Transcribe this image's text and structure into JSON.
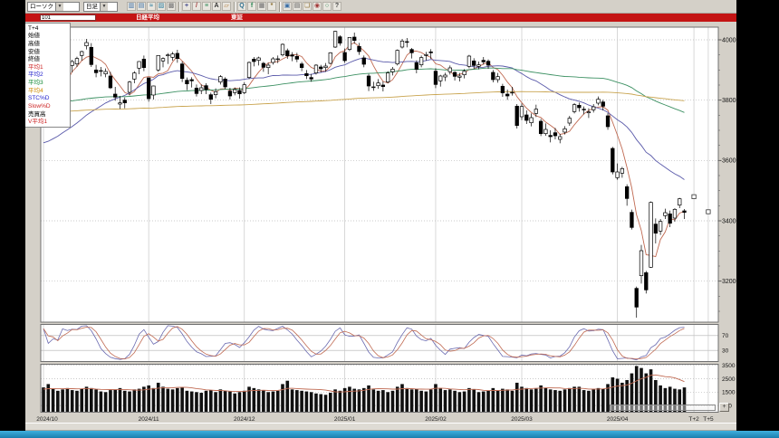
{
  "toolbar": {
    "chart_type_value": "ローソク",
    "period_value": "日足",
    "icons": [
      {
        "name": "candle-chart-icon",
        "glyph": "▥",
        "color": "#3a6ea5"
      },
      {
        "name": "bar-chart-icon",
        "glyph": "▤",
        "color": "#3a6ea5"
      },
      {
        "name": "line-chart-icon",
        "glyph": "≈",
        "color": "#2e7d9e"
      },
      {
        "name": "area-chart-icon",
        "glyph": "▨",
        "color": "#2e7d9e"
      },
      {
        "name": "compare-chart-icon",
        "glyph": "▩",
        "color": "#6f6f6f"
      },
      {
        "name": "separator",
        "sep": true
      },
      {
        "name": "crosshair-icon",
        "glyph": "+",
        "color": "#444a8c"
      },
      {
        "name": "trendline-icon",
        "glyph": "/",
        "color": "#a03535"
      },
      {
        "name": "fibonacci-icon",
        "glyph": "≡",
        "color": "#2f8a57"
      },
      {
        "name": "text-annotation-icon",
        "glyph": "A",
        "color": "#333333"
      },
      {
        "name": "eraser-icon",
        "glyph": "▱",
        "color": "#b07a3c"
      },
      {
        "name": "separator",
        "sep": true
      },
      {
        "name": "zoom-in-icon",
        "glyph": "Q",
        "color": "#2e6e8e"
      },
      {
        "name": "indicator-icon",
        "glyph": "f",
        "color": "#2f8a57"
      },
      {
        "name": "grid-toggle-icon",
        "glyph": "▦",
        "color": "#666666"
      },
      {
        "name": "settings-icon",
        "glyph": "*",
        "color": "#8a6d2f"
      },
      {
        "name": "separator",
        "sep": true
      },
      {
        "name": "save-icon",
        "glyph": "▣",
        "color": "#3a6ea5"
      },
      {
        "name": "print-icon",
        "glyph": "▤",
        "color": "#555555"
      },
      {
        "name": "copy-icon",
        "glyph": "❏",
        "color": "#8a6d2f"
      },
      {
        "name": "camera-icon",
        "glyph": "◉",
        "color": "#a03535"
      },
      {
        "name": "refresh-icon",
        "glyph": "○",
        "color": "#2f8a57"
      },
      {
        "name": "help-icon",
        "glyph": "?",
        "color": "#444444"
      }
    ]
  },
  "banner": {
    "code": "101",
    "name": "日経平均",
    "market": "東証",
    "color": "#c41414"
  },
  "legend": {
    "items": [
      {
        "label": "T+4",
        "color": "#000000"
      },
      {
        "label": "始値",
        "color": "#000000"
      },
      {
        "label": "高値",
        "color": "#000000"
      },
      {
        "label": "安値",
        "color": "#000000"
      },
      {
        "label": "終値",
        "color": "#000000"
      },
      {
        "label": "平均1",
        "color": "#cc2222"
      },
      {
        "label": "平均2",
        "color": "#2222cc"
      },
      {
        "label": "平均3",
        "color": "#118833"
      },
      {
        "label": "平均4",
        "color": "#cc8800"
      },
      {
        "label": "STC%D",
        "color": "#2222cc"
      },
      {
        "label": "Slow%D",
        "color": "#cc2222"
      },
      {
        "label": "売買高",
        "color": "#000000"
      },
      {
        "label": "V平均1",
        "color": "#cc2222"
      }
    ]
  },
  "footer": {
    "expand_glyph": "+"
  },
  "chart_data": {
    "type": "candlestick",
    "title": "日経平均 日足",
    "x_labels": [
      {
        "label": "2024/10",
        "index": 0
      },
      {
        "label": "2024/11",
        "index": 22
      },
      {
        "label": "2024/12",
        "index": 42
      },
      {
        "label": "2025/01",
        "index": 63
      },
      {
        "label": "2025/02",
        "index": 82
      },
      {
        "label": "2025/03",
        "index": 100
      },
      {
        "label": "2025/04",
        "index": 120
      },
      {
        "label": "T+2",
        "offset": 2
      },
      {
        "label": "T+5",
        "offset": 5
      }
    ],
    "y_axis_main": {
      "ticks": [
        40000,
        38000,
        36000,
        34000,
        32000
      ],
      "minor_step": 500,
      "range": [
        30640,
        40420
      ]
    },
    "y_axis_stoch": {
      "ticks": [
        70,
        30
      ],
      "range": [
        0,
        100
      ]
    },
    "y_axis_volume": {
      "ticks": [
        3500,
        2500,
        1500,
        500
      ],
      "range": [
        0,
        3580
      ]
    },
    "candles": [
      [
        38300,
        38700,
        38250,
        38650
      ],
      [
        38400,
        38650,
        37720,
        37810
      ],
      [
        38140,
        38620,
        38090,
        38550
      ],
      [
        38560,
        38860,
        38380,
        38640
      ],
      [
        39100,
        39350,
        38900,
        39330
      ],
      [
        39380,
        39430,
        38820,
        38940
      ],
      [
        39150,
        39340,
        38920,
        39280
      ],
      [
        39200,
        39440,
        39100,
        39380
      ],
      [
        39480,
        39640,
        39310,
        39610
      ],
      [
        39800,
        40030,
        39680,
        39910
      ],
      [
        39750,
        39890,
        39100,
        39180
      ],
      [
        39000,
        39170,
        38760,
        38910
      ],
      [
        38970,
        39100,
        38790,
        38980
      ],
      [
        38870,
        39050,
        38760,
        38950
      ],
      [
        38800,
        38940,
        38370,
        38410
      ],
      [
        38200,
        38440,
        37980,
        38100
      ],
      [
        37870,
        38140,
        37710,
        37910
      ],
      [
        38000,
        38090,
        37730,
        37910
      ],
      [
        38260,
        38640,
        38160,
        38600
      ],
      [
        38700,
        38960,
        38560,
        38900
      ],
      [
        39060,
        39290,
        38860,
        39280
      ],
      [
        39360,
        39480,
        38960,
        39080
      ],
      [
        38740,
        38750,
        37950,
        38050
      ],
      [
        38170,
        38480,
        38020,
        38470
      ],
      [
        39000,
        39490,
        38940,
        39480
      ],
      [
        39300,
        39420,
        39090,
        39380
      ],
      [
        39470,
        39560,
        39200,
        39500
      ],
      [
        39420,
        39600,
        39310,
        39530
      ],
      [
        39550,
        39670,
        39240,
        39380
      ],
      [
        39200,
        39280,
        38600,
        38720
      ],
      [
        38660,
        38750,
        38330,
        38540
      ],
      [
        38680,
        38760,
        38420,
        38640
      ],
      [
        38400,
        38520,
        38120,
        38220
      ],
      [
        38320,
        38520,
        38200,
        38410
      ],
      [
        38480,
        38560,
        38200,
        38350
      ],
      [
        38180,
        38250,
        37870,
        38030
      ],
      [
        38180,
        38390,
        38060,
        38280
      ],
      [
        38600,
        38830,
        38520,
        38780
      ],
      [
        38700,
        38760,
        38370,
        38440
      ],
      [
        38300,
        38410,
        38020,
        38140
      ],
      [
        38250,
        38420,
        38160,
        38350
      ],
      [
        38320,
        38420,
        38050,
        38210
      ],
      [
        38250,
        38590,
        38200,
        38510
      ],
      [
        38750,
        39280,
        38700,
        39250
      ],
      [
        39360,
        39430,
        39120,
        39280
      ],
      [
        39320,
        39440,
        39150,
        39400
      ],
      [
        39220,
        39270,
        38940,
        39090
      ],
      [
        39080,
        39240,
        38860,
        39160
      ],
      [
        39250,
        39430,
        39180,
        39370
      ],
      [
        39350,
        39480,
        39230,
        39370
      ],
      [
        39500,
        39880,
        39450,
        39850
      ],
      [
        39640,
        39710,
        39370,
        39470
      ],
      [
        39500,
        39590,
        39290,
        39460
      ],
      [
        39450,
        39570,
        39260,
        39360
      ],
      [
        39200,
        39270,
        38960,
        39080
      ],
      [
        38880,
        39000,
        38700,
        38810
      ],
      [
        38750,
        38870,
        38610,
        38700
      ],
      [
        38900,
        39190,
        38850,
        39160
      ],
      [
        39100,
        39170,
        38920,
        39040
      ],
      [
        39080,
        39230,
        38940,
        39130
      ],
      [
        39220,
        39590,
        39190,
        39570
      ],
      [
        39760,
        40300,
        39730,
        40280
      ],
      [
        40100,
        40150,
        39810,
        39890
      ],
      [
        39580,
        39710,
        39240,
        39310
      ],
      [
        39680,
        40090,
        39630,
        40080
      ],
      [
        40090,
        40240,
        39870,
        39980
      ],
      [
        39780,
        39900,
        39500,
        39610
      ],
      [
        39400,
        39480,
        39090,
        39190
      ],
      [
        38800,
        38870,
        38300,
        38470
      ],
      [
        38420,
        38610,
        38310,
        38440
      ],
      [
        38480,
        38700,
        38380,
        38570
      ],
      [
        38500,
        38620,
        38290,
        38450
      ],
      [
        38600,
        38960,
        38560,
        38900
      ],
      [
        38940,
        39100,
        38820,
        39030
      ],
      [
        39200,
        39680,
        39150,
        39650
      ],
      [
        39760,
        40030,
        39710,
        39960
      ],
      [
        39940,
        40060,
        39750,
        39930
      ],
      [
        39680,
        39730,
        39380,
        39570
      ],
      [
        39240,
        39320,
        38890,
        39020
      ],
      [
        39170,
        39480,
        39090,
        39410
      ],
      [
        39480,
        39600,
        39310,
        39510
      ],
      [
        39600,
        39690,
        39370,
        39570
      ],
      [
        38960,
        39060,
        38400,
        38520
      ],
      [
        38640,
        38840,
        38450,
        38800
      ],
      [
        38770,
        38910,
        38630,
        38830
      ],
      [
        38940,
        39150,
        38850,
        39070
      ],
      [
        38920,
        38960,
        38650,
        38790
      ],
      [
        38760,
        38900,
        38620,
        38800
      ],
      [
        38840,
        39030,
        38720,
        38960
      ],
      [
        39120,
        39500,
        39060,
        39460
      ],
      [
        39300,
        39390,
        39030,
        39150
      ],
      [
        39120,
        39280,
        39020,
        39170
      ],
      [
        39320,
        39430,
        39180,
        39270
      ],
      [
        39290,
        39350,
        39040,
        39160
      ],
      [
        38920,
        39000,
        38590,
        38680
      ],
      [
        38680,
        38900,
        38580,
        38780
      ],
      [
        38460,
        38540,
        38110,
        38240
      ],
      [
        38200,
        38350,
        38010,
        38140
      ],
      [
        38250,
        38440,
        38150,
        38260
      ],
      [
        37800,
        37870,
        37060,
        37160
      ],
      [
        37450,
        37890,
        37340,
        37790
      ],
      [
        37510,
        37660,
        37210,
        37330
      ],
      [
        37250,
        37560,
        37130,
        37420
      ],
      [
        37560,
        37850,
        37440,
        37700
      ],
      [
        37300,
        37380,
        36810,
        36890
      ],
      [
        36890,
        37230,
        36820,
        37030
      ],
      [
        36830,
        37000,
        36600,
        36790
      ],
      [
        36920,
        37080,
        36700,
        36820
      ],
      [
        36700,
        36880,
        36570,
        36790
      ],
      [
        36940,
        37140,
        36860,
        37050
      ],
      [
        37240,
        37480,
        37150,
        37400
      ],
      [
        37620,
        37900,
        37560,
        37850
      ],
      [
        37830,
        37920,
        37620,
        37750
      ],
      [
        37700,
        37790,
        37530,
        37680
      ],
      [
        37580,
        37730,
        37410,
        37610
      ],
      [
        37680,
        37870,
        37590,
        37780
      ],
      [
        37900,
        38120,
        37830,
        38030
      ],
      [
        37940,
        38010,
        37660,
        37800
      ],
      [
        37480,
        37570,
        37020,
        37120
      ],
      [
        36400,
        36450,
        35540,
        35620
      ],
      [
        35430,
        35900,
        35360,
        35620
      ],
      [
        35580,
        35790,
        35430,
        35730
      ],
      [
        35130,
        35210,
        34500,
        34740
      ],
      [
        34280,
        34370,
        33710,
        33780
      ],
      [
        31760,
        31820,
        30790,
        31140
      ],
      [
        32180,
        33200,
        31920,
        33010
      ],
      [
        32280,
        32340,
        31590,
        31710
      ],
      [
        32460,
        34640,
        32440,
        34610
      ],
      [
        33890,
        34080,
        33250,
        33590
      ],
      [
        33660,
        34060,
        33530,
        33980
      ],
      [
        34170,
        34400,
        34060,
        34270
      ],
      [
        34230,
        34340,
        33790,
        33920
      ],
      [
        34090,
        34420,
        33970,
        34380
      ],
      [
        34520,
        34760,
        34420,
        34730
      ],
      [
        34330,
        34390,
        34060,
        34280
      ]
    ],
    "volume": [
      1850,
      2100,
      1750,
      1600,
      1700,
      1800,
      1650,
      1600,
      1750,
      1900,
      1800,
      1700,
      1550,
      1500,
      1650,
      1700,
      1800,
      1600,
      1550,
      1700,
      1750,
      1900,
      2000,
      1800,
      2200,
      1900,
      1750,
      1700,
      1800,
      1850,
      1600,
      1550,
      1500,
      1450,
      1600,
      1650,
      1500,
      1700,
      1600,
      1550,
      1400,
      1500,
      1600,
      1900,
      1800,
      1700,
      1650,
      1500,
      1550,
      1600,
      2100,
      2350,
      1700,
      1650,
      1600,
      1550,
      1500,
      1400,
      1350,
      1300,
      1450,
      1700,
      1600,
      1800,
      1900,
      1750,
      1700,
      1800,
      2000,
      1700,
      1600,
      1650,
      1500,
      1600,
      1900,
      2100,
      1800,
      1700,
      1750,
      1600,
      1550,
      1700,
      2100,
      1800,
      1650,
      1700,
      1600,
      1500,
      1550,
      1800,
      1700,
      1500,
      1550,
      1600,
      1800,
      1600,
      1750,
      1700,
      1600,
      2200,
      1900,
      1800,
      1700,
      1750,
      2000,
      1800,
      1700,
      1650,
      1600,
      1700,
      1800,
      1900,
      1900,
      1650,
      1600,
      1700,
      1800,
      1750,
      2100,
      2600,
      2500,
      2200,
      2400,
      2900,
      3450,
      3300,
      2900,
      3200,
      2400,
      2000,
      1800,
      1900,
      1750,
      1700,
      1850
    ],
    "averages": [
      {
        "name": "平均1",
        "period": 5,
        "seed": 38200,
        "color": "#c06a52"
      },
      {
        "name": "平均2",
        "period": 25,
        "seed": 36500,
        "color": "#5a5aaa"
      },
      {
        "name": "平均3",
        "period": 75,
        "seed": 37900,
        "color": "#3d9163"
      },
      {
        "name": "平均4",
        "period": 200,
        "seed": 37600,
        "color": "#c9a44f"
      }
    ],
    "volume_average": {
      "name": "V平均1",
      "period": 10,
      "seed": 1700,
      "color": "#c06a52"
    },
    "stochastic": {
      "k_period": 9,
      "d_period": 3,
      "slow_period": 3,
      "d_color": "#6a6ab0",
      "slow_color": "#c06a52",
      "guides": [
        70,
        30
      ]
    },
    "future_markers": [
      {
        "label": "T+2",
        "offset": 2,
        "value": 34800
      },
      {
        "label": "T+5",
        "offset": 5,
        "value": 34300
      }
    ]
  }
}
